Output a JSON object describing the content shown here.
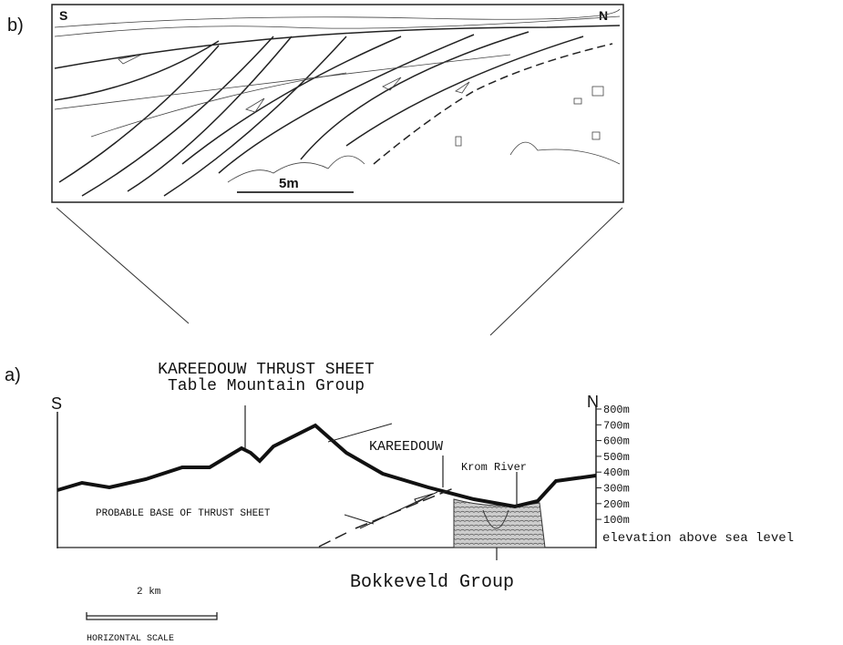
{
  "panel_b": {
    "label": "b)",
    "south": "S",
    "north": "N",
    "scale": "5m"
  },
  "panel_a": {
    "label": "a)",
    "title": "KAREEDOUW THRUST SHEET",
    "subtitle": "Table Mountain Group",
    "south": "S",
    "north": "N",
    "elevation_ticks": [
      "800m",
      "700m",
      "600m",
      "500m",
      "400m",
      "300m",
      "200m",
      "100m"
    ],
    "elevation_caption": "elevation above sea level",
    "annotations": {
      "kareedouw": "KAREEDOUW",
      "river": "Krom River",
      "thrust_base": "PROBABLE BASE OF THRUST SHEET",
      "bokkeveld": "Bokkeveld Group"
    },
    "scale_value": "2 km",
    "scale_caption": "HORIZONTAL SCALE"
  }
}
